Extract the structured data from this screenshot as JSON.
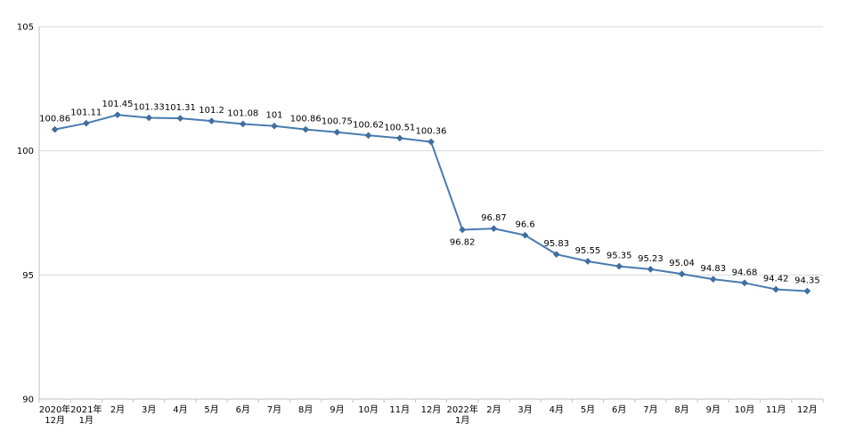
{
  "chart_data": {
    "type": "line",
    "title": "",
    "xlabel": "",
    "ylabel": "",
    "ylim": [
      90,
      105
    ],
    "yticks": [
      90,
      95,
      100,
      105
    ],
    "grid": "horizontal",
    "legend": "none",
    "categories": [
      [
        "2020年",
        "12月"
      ],
      [
        "2021年",
        "1月"
      ],
      [
        "2月"
      ],
      [
        "3月"
      ],
      [
        "4月"
      ],
      [
        "5月"
      ],
      [
        "6月"
      ],
      [
        "7月"
      ],
      [
        "8月"
      ],
      [
        "9月"
      ],
      [
        "10月"
      ],
      [
        "11月"
      ],
      [
        "12月"
      ],
      [
        "2022年",
        "1月"
      ],
      [
        "2月"
      ],
      [
        "3月"
      ],
      [
        "4月"
      ],
      [
        "5月"
      ],
      [
        "6月"
      ],
      [
        "7月"
      ],
      [
        "8月"
      ],
      [
        "9月"
      ],
      [
        "10月"
      ],
      [
        "11月"
      ],
      [
        "12月"
      ]
    ],
    "series": [
      {
        "name": "",
        "values": [
          100.86,
          101.11,
          101.45,
          101.33,
          101.31,
          101.2,
          101.08,
          101,
          100.86,
          100.75,
          100.62,
          100.51,
          100.36,
          96.82,
          96.87,
          96.6,
          95.83,
          95.55,
          95.35,
          95.23,
          95.04,
          94.83,
          94.68,
          94.42,
          94.35
        ],
        "labels": [
          "100.86",
          "101.11",
          "101.45",
          "101.33",
          "101.31",
          "101.2",
          "101.08",
          "101",
          "100.86",
          "100.75",
          "100.62",
          "100.51",
          "100.36",
          "96.82",
          "96.87",
          "96.6",
          "95.83",
          "95.55",
          "95.35",
          "95.23",
          "95.04",
          "94.83",
          "94.68",
          "94.42",
          "94.35"
        ],
        "label_position": [
          "above",
          "above",
          "above",
          "above",
          "above",
          "above",
          "above",
          "above",
          "above",
          "above",
          "above",
          "above",
          "above",
          "below",
          "above",
          "above",
          "above",
          "above",
          "above",
          "above",
          "above",
          "above",
          "above",
          "above",
          "above"
        ]
      }
    ],
    "colors": {
      "line": "#4a7bb0",
      "marker": "#3f6e9f",
      "grid": "#d9d9d9",
      "axis": "#bfbfbf"
    }
  }
}
